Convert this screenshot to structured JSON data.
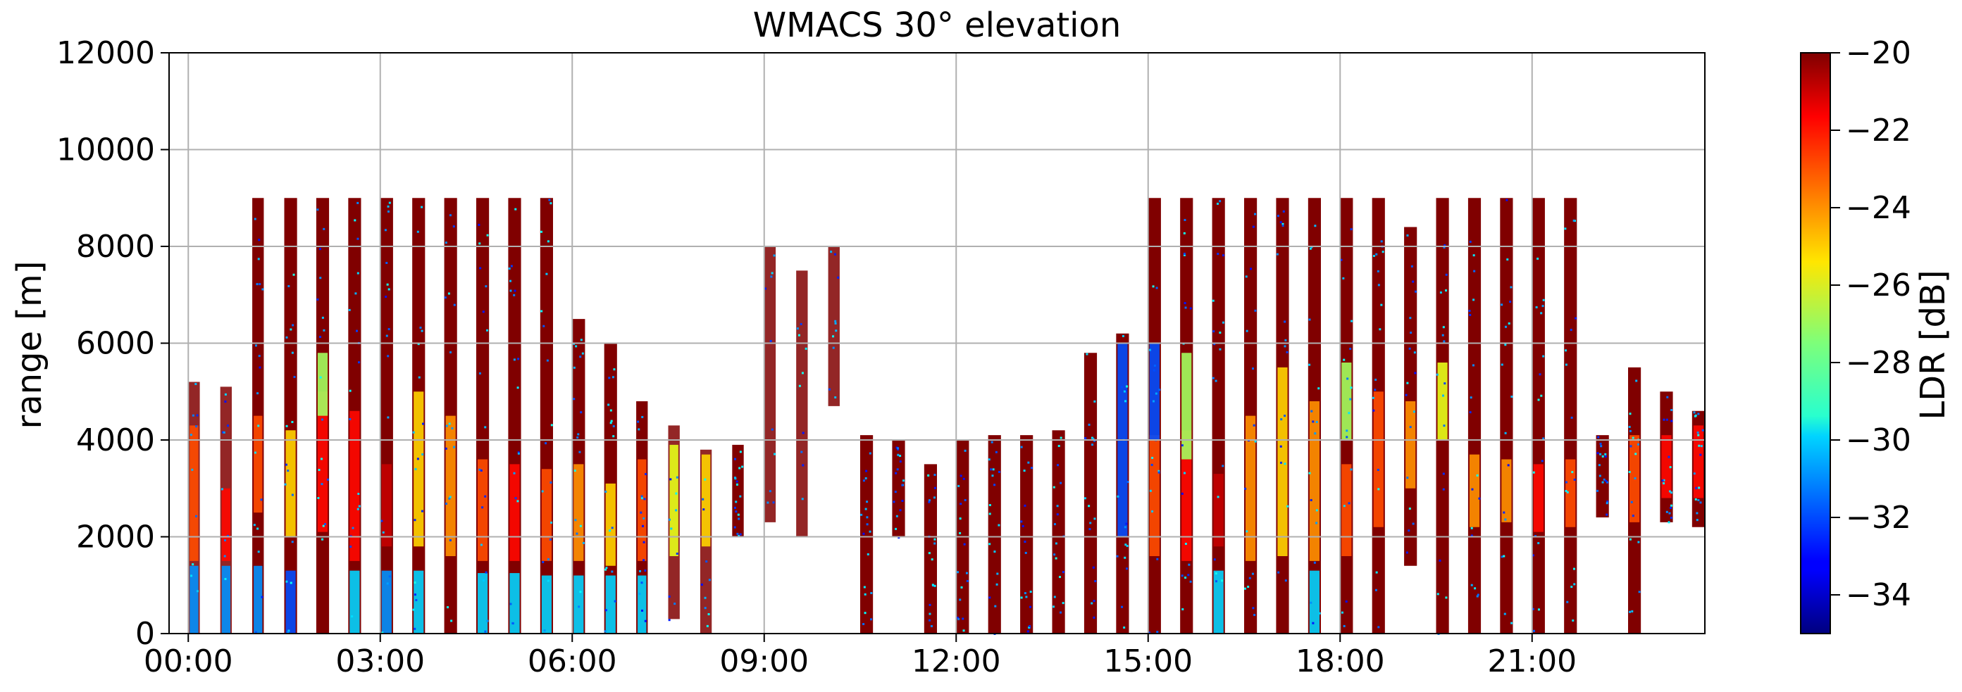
{
  "chart_data": {
    "type": "heatmap",
    "title": "WMACS 30° elevation",
    "xlabel": "",
    "ylabel": "range [m]",
    "x_tick_labels": [
      "00:00",
      "03:00",
      "06:00",
      "09:00",
      "12:00",
      "15:00",
      "18:00",
      "21:00"
    ],
    "x_tick_hours": [
      0,
      3,
      6,
      9,
      12,
      15,
      18,
      21
    ],
    "xlim_hours": [
      -0.3,
      23.7
    ],
    "y_tick_labels": [
      "0",
      "2000",
      "4000",
      "6000",
      "8000",
      "10000",
      "12000"
    ],
    "y_ticks": [
      0,
      2000,
      4000,
      6000,
      8000,
      10000,
      12000
    ],
    "ylim": [
      0,
      12000
    ],
    "grid": true,
    "colorbar": {
      "label": "LDR [dB]",
      "range": [
        -35,
        -20
      ],
      "tick_labels": [
        "−20",
        "−22",
        "−24",
        "−26",
        "−28",
        "−30",
        "−32",
        "−34"
      ],
      "ticks": [
        -20,
        -22,
        -24,
        -26,
        -28,
        -30,
        -32,
        -34
      ],
      "colormap": "jet"
    },
    "stripes": [
      {
        "start": 0.0,
        "end": 0.18,
        "bottom": 0,
        "top": 5200,
        "fill": "speckle",
        "features": [
          {
            "b": 0,
            "t": 1400,
            "v": -31
          },
          {
            "b": 1500,
            "t": 4300,
            "v": -23
          }
        ]
      },
      {
        "start": 0.5,
        "end": 0.68,
        "bottom": 0,
        "top": 5100,
        "fill": "speckle",
        "features": [
          {
            "b": 0,
            "t": 1400,
            "v": -31
          },
          {
            "b": 1500,
            "t": 3000,
            "v": -22
          }
        ]
      },
      {
        "start": 1.0,
        "end": 1.18,
        "bottom": 0,
        "top": 9000,
        "fill": "dense",
        "features": [
          {
            "b": 0,
            "t": 1400,
            "v": -31
          },
          {
            "b": 2500,
            "t": 4500,
            "v": -23
          }
        ]
      },
      {
        "start": 1.5,
        "end": 1.7,
        "bottom": 0,
        "top": 9000,
        "fill": "dense",
        "features": [
          {
            "b": 0,
            "t": 1300,
            "v": -32
          },
          {
            "b": 2000,
            "t": 4200,
            "v": -25
          }
        ]
      },
      {
        "start": 2.0,
        "end": 2.2,
        "bottom": 0,
        "top": 9000,
        "fill": "dense",
        "features": [
          {
            "b": 2100,
            "t": 5000,
            "v": -22
          },
          {
            "b": 4500,
            "t": 5800,
            "v": -27
          }
        ]
      },
      {
        "start": 2.5,
        "end": 2.7,
        "bottom": 0,
        "top": 9000,
        "fill": "dense",
        "features": [
          {
            "b": 0,
            "t": 1300,
            "v": -30
          },
          {
            "b": 1500,
            "t": 4600,
            "v": -22
          }
        ]
      },
      {
        "start": 3.0,
        "end": 3.2,
        "bottom": 0,
        "top": 9000,
        "fill": "dense",
        "features": [
          {
            "b": 0,
            "t": 1300,
            "v": -31
          },
          {
            "b": 1800,
            "t": 3500,
            "v": -21
          }
        ]
      },
      {
        "start": 3.5,
        "end": 3.7,
        "bottom": 0,
        "top": 9000,
        "fill": "dense",
        "features": [
          {
            "b": 0,
            "t": 1300,
            "v": -30
          },
          {
            "b": 1800,
            "t": 5000,
            "v": -25
          }
        ]
      },
      {
        "start": 4.0,
        "end": 4.2,
        "bottom": 0,
        "top": 9000,
        "fill": "dense",
        "features": [
          {
            "b": 1600,
            "t": 4500,
            "v": -24
          }
        ]
      },
      {
        "start": 4.5,
        "end": 4.7,
        "bottom": 0,
        "top": 9000,
        "fill": "dense",
        "features": [
          {
            "b": 0,
            "t": 1250,
            "v": -30
          },
          {
            "b": 1500,
            "t": 3600,
            "v": -23
          }
        ]
      },
      {
        "start": 5.0,
        "end": 5.2,
        "bottom": 0,
        "top": 9000,
        "fill": "dense",
        "features": [
          {
            "b": 0,
            "t": 1250,
            "v": -30
          },
          {
            "b": 1500,
            "t": 3500,
            "v": -22
          }
        ]
      },
      {
        "start": 5.5,
        "end": 5.7,
        "bottom": 0,
        "top": 9000,
        "fill": "dense",
        "features": [
          {
            "b": 0,
            "t": 1200,
            "v": -30
          },
          {
            "b": 1500,
            "t": 3400,
            "v": -23
          }
        ]
      },
      {
        "start": 6.0,
        "end": 6.2,
        "bottom": 0,
        "top": 6500,
        "fill": "dense",
        "features": [
          {
            "b": 0,
            "t": 1200,
            "v": -30
          },
          {
            "b": 1500,
            "t": 3500,
            "v": -24
          }
        ]
      },
      {
        "start": 6.5,
        "end": 6.7,
        "bottom": 0,
        "top": 6000,
        "fill": "dense",
        "features": [
          {
            "b": 0,
            "t": 1200,
            "v": -30
          },
          {
            "b": 1400,
            "t": 3100,
            "v": -25
          }
        ]
      },
      {
        "start": 7.0,
        "end": 7.18,
        "bottom": 0,
        "top": 4800,
        "fill": "dense",
        "features": [
          {
            "b": 0,
            "t": 1200,
            "v": -30
          },
          {
            "b": 1500,
            "t": 3600,
            "v": -23
          }
        ]
      },
      {
        "start": 7.5,
        "end": 7.68,
        "bottom": 300,
        "top": 4300,
        "fill": "speckle",
        "features": [
          {
            "b": 1600,
            "t": 3900,
            "v": -26
          }
        ]
      },
      {
        "start": 8.0,
        "end": 8.18,
        "bottom": 0,
        "top": 3800,
        "fill": "speckle",
        "features": [
          {
            "b": 1800,
            "t": 3700,
            "v": -25
          }
        ]
      },
      {
        "start": 8.5,
        "end": 8.68,
        "bottom": 2000,
        "top": 3900,
        "fill": "dense",
        "features": []
      },
      {
        "start": 9.0,
        "end": 9.18,
        "bottom": 2300,
        "top": 8000,
        "fill": "speckle",
        "features": []
      },
      {
        "start": 9.5,
        "end": 9.68,
        "bottom": 2000,
        "top": 7500,
        "fill": "speckle",
        "features": []
      },
      {
        "start": 10.0,
        "end": 10.18,
        "bottom": 4700,
        "top": 8000,
        "fill": "speckle",
        "features": []
      },
      {
        "start": 10.5,
        "end": 10.7,
        "bottom": 0,
        "top": 4100,
        "fill": "dense",
        "features": []
      },
      {
        "start": 11.0,
        "end": 11.2,
        "bottom": 2000,
        "top": 4000,
        "fill": "dense",
        "features": []
      },
      {
        "start": 11.5,
        "end": 11.7,
        "bottom": 0,
        "top": 3500,
        "fill": "dense",
        "features": []
      },
      {
        "start": 12.0,
        "end": 12.2,
        "bottom": 0,
        "top": 4000,
        "fill": "dense",
        "features": []
      },
      {
        "start": 12.5,
        "end": 12.7,
        "bottom": 0,
        "top": 4100,
        "fill": "dense",
        "features": []
      },
      {
        "start": 13.0,
        "end": 13.2,
        "bottom": 0,
        "top": 4100,
        "fill": "dense",
        "features": []
      },
      {
        "start": 13.5,
        "end": 13.7,
        "bottom": 0,
        "top": 4200,
        "fill": "dense",
        "features": []
      },
      {
        "start": 14.0,
        "end": 14.2,
        "bottom": 0,
        "top": 5800,
        "fill": "dense",
        "features": []
      },
      {
        "start": 14.5,
        "end": 14.7,
        "bottom": 0,
        "top": 6200,
        "fill": "dense",
        "features": [
          {
            "b": 2000,
            "t": 6000,
            "v": -32
          }
        ]
      },
      {
        "start": 15.0,
        "end": 15.2,
        "bottom": 0,
        "top": 9000,
        "fill": "dense",
        "features": [
          {
            "b": 1600,
            "t": 4100,
            "v": -23
          },
          {
            "b": 4000,
            "t": 6000,
            "v": -32
          }
        ]
      },
      {
        "start": 15.5,
        "end": 15.7,
        "bottom": 0,
        "top": 9000,
        "fill": "dense",
        "features": [
          {
            "b": 1500,
            "t": 4200,
            "v": -22
          },
          {
            "b": 3600,
            "t": 5800,
            "v": -27
          }
        ]
      },
      {
        "start": 16.0,
        "end": 16.2,
        "bottom": 0,
        "top": 9000,
        "fill": "dense",
        "features": [
          {
            "b": 0,
            "t": 1300,
            "v": -30
          },
          {
            "b": 1800,
            "t": 3300,
            "v": -21
          }
        ]
      },
      {
        "start": 16.5,
        "end": 16.7,
        "bottom": 0,
        "top": 9000,
        "fill": "dense",
        "features": [
          {
            "b": 1500,
            "t": 4500,
            "v": -24
          }
        ]
      },
      {
        "start": 17.0,
        "end": 17.2,
        "bottom": 0,
        "top": 9000,
        "fill": "dense",
        "features": [
          {
            "b": 1600,
            "t": 5500,
            "v": -25
          }
        ]
      },
      {
        "start": 17.5,
        "end": 17.7,
        "bottom": 0,
        "top": 9000,
        "fill": "dense",
        "features": [
          {
            "b": 0,
            "t": 1300,
            "v": -30
          },
          {
            "b": 1500,
            "t": 4800,
            "v": -24
          }
        ]
      },
      {
        "start": 18.0,
        "end": 18.2,
        "bottom": 0,
        "top": 9000,
        "fill": "dense",
        "features": [
          {
            "b": 1600,
            "t": 3500,
            "v": -23
          },
          {
            "b": 4000,
            "t": 5600,
            "v": -27
          }
        ]
      },
      {
        "start": 18.5,
        "end": 18.7,
        "bottom": 0,
        "top": 9000,
        "fill": "dense",
        "features": [
          {
            "b": 2200,
            "t": 5000,
            "v": -23
          }
        ]
      },
      {
        "start": 19.0,
        "end": 19.2,
        "bottom": 1400,
        "top": 8400,
        "fill": "dense",
        "features": [
          {
            "b": 3000,
            "t": 4800,
            "v": -24
          }
        ]
      },
      {
        "start": 19.5,
        "end": 19.7,
        "bottom": 0,
        "top": 9000,
        "fill": "dense",
        "features": [
          {
            "b": 4000,
            "t": 5600,
            "v": -26
          }
        ]
      },
      {
        "start": 20.0,
        "end": 20.2,
        "bottom": 0,
        "top": 9000,
        "fill": "dense",
        "features": [
          {
            "b": 2200,
            "t": 3700,
            "v": -24
          }
        ]
      },
      {
        "start": 20.5,
        "end": 20.7,
        "bottom": 0,
        "top": 9000,
        "fill": "dense",
        "features": [
          {
            "b": 2300,
            "t": 3600,
            "v": -24
          }
        ]
      },
      {
        "start": 21.0,
        "end": 21.2,
        "bottom": 0,
        "top": 9000,
        "fill": "dense",
        "features": [
          {
            "b": 2100,
            "t": 3500,
            "v": -22
          }
        ]
      },
      {
        "start": 21.5,
        "end": 21.7,
        "bottom": 0,
        "top": 9000,
        "fill": "dense",
        "features": [
          {
            "b": 2200,
            "t": 3600,
            "v": -23
          }
        ]
      },
      {
        "start": 22.0,
        "end": 22.2,
        "bottom": 2400,
        "top": 4100,
        "fill": "dense",
        "features": []
      },
      {
        "start": 22.5,
        "end": 22.7,
        "bottom": 0,
        "top": 5500,
        "fill": "dense",
        "features": [
          {
            "b": 2300,
            "t": 4100,
            "v": -23
          }
        ]
      },
      {
        "start": 23.0,
        "end": 23.2,
        "bottom": 2300,
        "top": 5000,
        "fill": "dense",
        "features": [
          {
            "b": 2800,
            "t": 4100,
            "v": -22
          }
        ]
      },
      {
        "start": 23.5,
        "end": 23.7,
        "bottom": 2200,
        "top": 4600,
        "fill": "dense",
        "features": [
          {
            "b": 2800,
            "t": 4300,
            "v": -22
          }
        ]
      }
    ]
  }
}
